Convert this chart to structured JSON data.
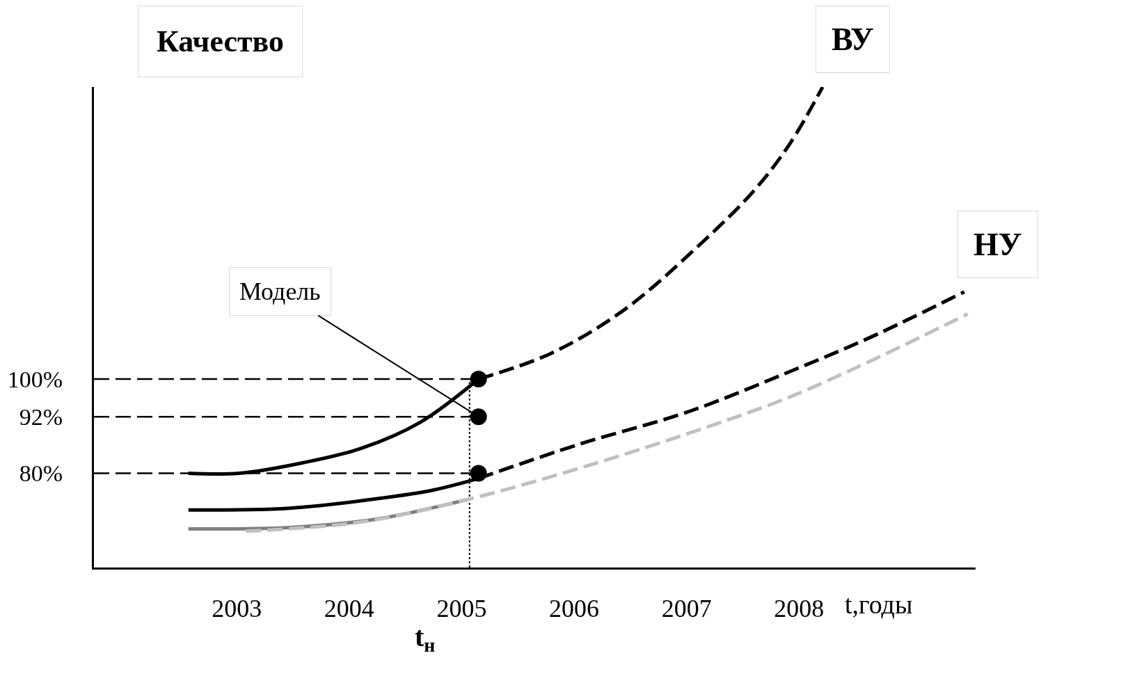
{
  "chart_data": {
    "type": "line",
    "ylabel": "Качество",
    "xlabel": "t,годы",
    "xlim": [
      2001.73,
      2009.57
    ],
    "ylim": [
      60,
      162
    ],
    "xticks": [
      2003,
      2004,
      2005,
      2006,
      2007,
      2008
    ],
    "yticks": [
      {
        "value": 80,
        "label": "80%"
      },
      {
        "value": 92,
        "label": "92%"
      },
      {
        "value": 100,
        "label": "100%"
      }
    ],
    "grid": false,
    "marker": "none",
    "series": [
      {
        "color": "#000000",
        "line_style": "solid",
        "x": [
          2002.57,
          2003.02,
          2003.6,
          2004.12,
          2004.63,
          2005.15
        ],
        "values": [
          80,
          80,
          82.3,
          85.4,
          90.8,
          100
        ]
      },
      {
        "name": "ВУ",
        "color": "#000000",
        "line_style": "dashed",
        "x": [
          2005.15,
          2005.79,
          2006.44,
          2007.08,
          2007.6,
          2007.92,
          2008.21
        ],
        "values": [
          100,
          105.4,
          114.6,
          127.7,
          140,
          150,
          162
        ]
      },
      {
        "color": "#000000",
        "line_style": "solid",
        "x": [
          2002.57,
          2003.47,
          2004.25,
          2004.76,
          2005.15
        ],
        "values": [
          72.2,
          72.6,
          74.6,
          76.5,
          78.9
        ]
      },
      {
        "name": "НУ",
        "color": "#000000",
        "line_style": "dashed",
        "x": [
          2005.15,
          2006.05,
          2007.02,
          2007.99,
          2008.63,
          2009.47
        ],
        "values": [
          78.9,
          86.2,
          93.1,
          102.3,
          108.8,
          118.5
        ]
      },
      {
        "color": "#808080",
        "line_style": "solid",
        "x": [
          2002.57,
          2003.47,
          2004.25,
          2005.08
        ],
        "values": [
          68.2,
          68.5,
          70.3,
          74.6
        ]
      },
      {
        "color": "#c0c0c0",
        "line_style": "dashed",
        "x": [
          2003.08,
          2004.12,
          2005.08,
          2006.05,
          2007.02,
          2007.99,
          2009.5
        ],
        "values": [
          67.7,
          69.7,
          74.6,
          81.1,
          88.5,
          96.9,
          113.8
        ]
      },
      {
        "type": "scatter",
        "marker": "circle",
        "color": "#000000",
        "x": [
          2005.15,
          2005.15,
          2005.15
        ],
        "values": [
          100,
          92,
          80
        ]
      }
    ],
    "ref_lines": [
      {
        "axis": "x",
        "value": 2005.07,
        "label": "t$_{н}$",
        "line_style": "dotted",
        "color": "#000000"
      },
      {
        "axis": "y",
        "value": 100,
        "line_style": "dashed",
        "color": "#000000"
      },
      {
        "axis": "y",
        "value": 92,
        "line_style": "dashed",
        "color": "#000000"
      },
      {
        "axis": "y",
        "value": 80,
        "line_style": "dashed",
        "color": "#000000"
      }
    ],
    "annotations": [
      {
        "text": "Модель",
        "x": 2005.15,
        "y": 92
      }
    ]
  }
}
